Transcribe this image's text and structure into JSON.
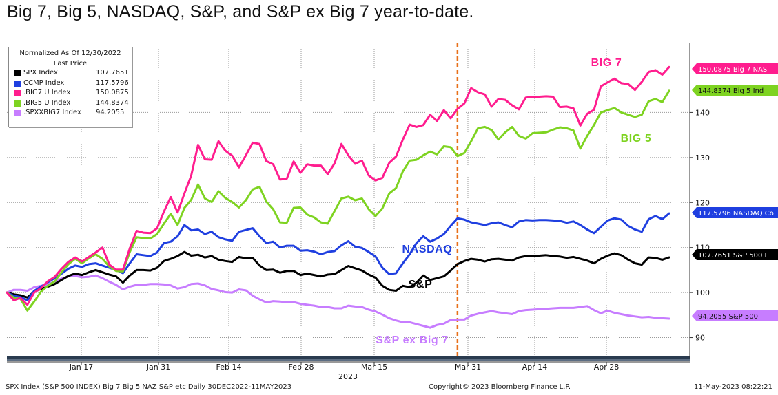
{
  "title": "Big 7, Big 5, NASDAQ, S&P, and S&P ex Big 7 year-to-date.",
  "legend": {
    "header_line1": "Normalized As Of 12/30/2022",
    "header_line2": "Last Price",
    "items": [
      {
        "name": "SPX Index",
        "value": "107.7651",
        "color": "#000000"
      },
      {
        "name": "CCMP Index",
        "value": "117.5796",
        "color": "#1f3fe0"
      },
      {
        "name": ".BIG7 U Index",
        "value": "150.0875",
        "color": "#ff1d8e"
      },
      {
        "name": ".BIG5 U Index",
        "value": "144.8374",
        "color": "#7ed321"
      },
      {
        "name": ".SPXXBIG7 Index",
        "value": "94.2055",
        "color": "#c77dff"
      }
    ]
  },
  "footer": {
    "left": "SPX Index (S&P 500 INDEX) Big 7 Big 5 NAZ S&P etc  Daily 30DEC2022-11MAY2023",
    "center": "Copyright© 2023 Bloomberg Finance L.P.",
    "right": "11-May-2023 08:22:21"
  },
  "chart_data": {
    "type": "line",
    "x_tick_labels": [
      "Jan 17",
      "Jan 31",
      "Feb 14",
      "Feb 28",
      "Mar 15",
      "Mar 31",
      "Apr 14",
      "Apr 28"
    ],
    "x_year_label": "2023",
    "y_ticks": [
      90,
      100,
      110,
      120,
      130,
      140
    ],
    "ylim": [
      85.5,
      155.5
    ],
    "vertical_marker_index": 66,
    "series": [
      {
        "name": "SPX Index",
        "color": "#000000",
        "last_label": "107.7651 S&P 500 I",
        "annotation": "S&P",
        "annotation_color": "#000000",
        "values": [
          100,
          99.6,
          99.4,
          98.9,
          100.2,
          100.8,
          101.3,
          101.9,
          102.8,
          103.7,
          104.2,
          103.9,
          104.5,
          105.0,
          104.5,
          104.0,
          103.6,
          102.2,
          103.8,
          105.0,
          105.0,
          104.9,
          105.5,
          107.0,
          107.5,
          108.1,
          109.0,
          108.2,
          108.4,
          107.8,
          108.1,
          107.3,
          107.0,
          106.8,
          107.9,
          107.6,
          107.7,
          106.0,
          105.0,
          105.1,
          104.4,
          104.8,
          104.8,
          103.9,
          104.2,
          103.9,
          103.6,
          104.0,
          104.1,
          105.0,
          105.9,
          105.4,
          104.9,
          104.0,
          103.3,
          101.5,
          100.6,
          100.4,
          101.5,
          101.2,
          102.2,
          103.8,
          102.8,
          103.2,
          103.6,
          104.9,
          106.3,
          107.0,
          107.5,
          107.3,
          106.9,
          107.4,
          107.5,
          107.3,
          107.1,
          107.8,
          108.1,
          108.2,
          108.2,
          108.3,
          108.1,
          108.0,
          107.7,
          107.9,
          107.5,
          107.1,
          106.5,
          107.5,
          108.2,
          108.7,
          108.3,
          107.3,
          106.5,
          106.2,
          107.8,
          107.7,
          107.3,
          107.8
        ]
      },
      {
        "name": "CCMP Index",
        "color": "#1f3fe0",
        "last_label": "117.5796 NASDAQ Co",
        "annotation": "NASDAQ",
        "annotation_color": "#1f3fe0",
        "values": [
          100,
          99.3,
          99.0,
          98.3,
          100.4,
          101.3,
          102.3,
          103.2,
          104.2,
          105.3,
          106.0,
          105.7,
          106.3,
          106.5,
          106.0,
          105.5,
          105.0,
          104.3,
          106.5,
          108.5,
          108.3,
          108.1,
          108.9,
          111.0,
          111.3,
          112.5,
          115.0,
          113.8,
          114.0,
          113.0,
          113.5,
          112.3,
          111.8,
          111.5,
          113.5,
          113.9,
          114.3,
          112.5,
          111.0,
          111.3,
          110.0,
          110.4,
          110.4,
          109.3,
          109.4,
          109.1,
          108.5,
          109.0,
          109.2,
          110.5,
          111.4,
          110.2,
          109.9,
          109.0,
          108.0,
          105.5,
          104.1,
          104.3,
          106.5,
          108.5,
          111.0,
          112.5,
          111.3,
          112.0,
          113.0,
          114.8,
          116.5,
          116.2,
          115.6,
          115.3,
          115.0,
          115.4,
          115.6,
          115.0,
          114.5,
          115.8,
          116.1,
          116.0,
          116.1,
          116.1,
          116.0,
          115.9,
          115.5,
          115.8,
          115.0,
          114.0,
          113.2,
          114.6,
          116.0,
          116.5,
          116.2,
          114.8,
          114.0,
          113.5,
          116.3,
          117.0,
          116.3,
          117.5796
        ]
      },
      {
        "name": ".BIG7 U Index",
        "color": "#ff1d8e",
        "last_label": "150.0875 Big 7 NAS",
        "annotation": "BIG 7",
        "annotation_color": "#ff1d8e",
        "values": [
          100,
          98.3,
          98.8,
          97.3,
          100.0,
          101.0,
          102.5,
          103.5,
          105.3,
          106.8,
          107.8,
          106.9,
          107.9,
          108.9,
          110.0,
          106.2,
          105.1,
          105.1,
          109.8,
          113.7,
          113.3,
          113.2,
          114.3,
          118.0,
          121.2,
          117.8,
          122.0,
          126.0,
          132.8,
          129.6,
          129.5,
          133.6,
          131.5,
          130.4,
          127.8,
          130.5,
          133.3,
          133.0,
          129.2,
          128.5,
          125.1,
          125.3,
          129.1,
          126.6,
          128.5,
          128.2,
          128.2,
          126.3,
          128.7,
          133.0,
          130.5,
          128.6,
          129.3,
          126.0,
          124.9,
          125.5,
          128.8,
          130.2,
          134.0,
          137.3,
          136.8,
          137.2,
          139.5,
          138.1,
          140.5,
          138.7,
          140.8,
          142.0,
          145.4,
          144.5,
          144.0,
          141.3,
          143.0,
          142.8,
          141.6,
          140.7,
          143.3,
          143.5,
          143.5,
          143.6,
          143.5,
          141.2,
          141.3,
          140.9,
          137.1,
          139.7,
          140.6,
          145.8,
          146.7,
          147.5,
          146.5,
          146.3,
          145.0,
          146.8,
          149.0,
          149.4,
          148.4,
          150.0875
        ]
      },
      {
        "name": ".BIG5 U Index",
        "color": "#7ed321",
        "last_label": "144.8374 Big 5 Ind",
        "annotation": "BIG 5",
        "annotation_color": "#7ed321",
        "values": [
          100,
          98.9,
          98.6,
          96.0,
          98.0,
          100.2,
          101.5,
          102.5,
          104.5,
          106.3,
          107.5,
          106.5,
          107.6,
          108.5,
          107.5,
          105.8,
          104.8,
          104.7,
          109.0,
          112.3,
          112.1,
          112.0,
          113.0,
          115.3,
          117.5,
          115.0,
          118.8,
          120.6,
          124.0,
          120.9,
          120.1,
          122.5,
          121.0,
          120.1,
          118.9,
          120.5,
          122.9,
          123.5,
          120.2,
          118.5,
          115.6,
          115.5,
          118.8,
          118.9,
          117.3,
          116.7,
          115.6,
          115.3,
          118.1,
          120.9,
          121.3,
          120.5,
          120.9,
          118.5,
          117.0,
          118.7,
          122.0,
          123.2,
          126.9,
          129.3,
          129.5,
          130.5,
          131.3,
          130.7,
          132.5,
          132.3,
          130.3,
          131.0,
          133.6,
          136.5,
          136.8,
          136.1,
          134.0,
          135.6,
          136.8,
          134.8,
          134.2,
          135.4,
          135.5,
          135.6,
          136.2,
          136.7,
          136.5,
          136.0,
          132.0,
          134.8,
          137.2,
          140.0,
          140.5,
          141.0,
          140.0,
          139.5,
          139.0,
          139.5,
          142.5,
          143.0,
          142.3,
          144.8374
        ]
      },
      {
        "name": ".SPXXBIG7 Index",
        "color": "#c77dff",
        "last_label": "94.2055  S&P 500 l",
        "annotation": "S&P ex Big 7",
        "annotation_color": "#c77dff",
        "values": [
          100,
          100.6,
          100.6,
          100.4,
          101.2,
          101.5,
          101.8,
          102.5,
          103.1,
          103.6,
          103.7,
          103.4,
          103.5,
          103.8,
          103.2,
          102.4,
          101.7,
          100.7,
          101.3,
          101.7,
          101.7,
          101.9,
          101.9,
          101.8,
          101.6,
          100.9,
          101.2,
          101.9,
          102.0,
          101.6,
          100.8,
          100.5,
          100.1,
          100.0,
          100.7,
          100.5,
          99.3,
          98.5,
          97.8,
          98.1,
          98.0,
          97.8,
          97.9,
          97.5,
          97.3,
          97.1,
          96.8,
          96.8,
          96.5,
          96.5,
          97.1,
          96.9,
          96.8,
          96.2,
          95.8,
          95.1,
          94.3,
          93.8,
          93.4,
          93.4,
          93.0,
          92.6,
          92.2,
          92.8,
          93.1,
          93.9,
          94.0,
          94.0,
          94.9,
          95.3,
          95.6,
          95.9,
          95.6,
          95.4,
          95.2,
          95.9,
          96.1,
          96.2,
          96.3,
          96.4,
          96.5,
          96.6,
          96.6,
          96.6,
          96.8,
          97.0,
          96.1,
          95.4,
          96.0,
          95.5,
          95.2,
          94.9,
          94.7,
          94.5,
          94.6,
          94.4,
          94.3,
          94.2055
        ]
      }
    ]
  }
}
